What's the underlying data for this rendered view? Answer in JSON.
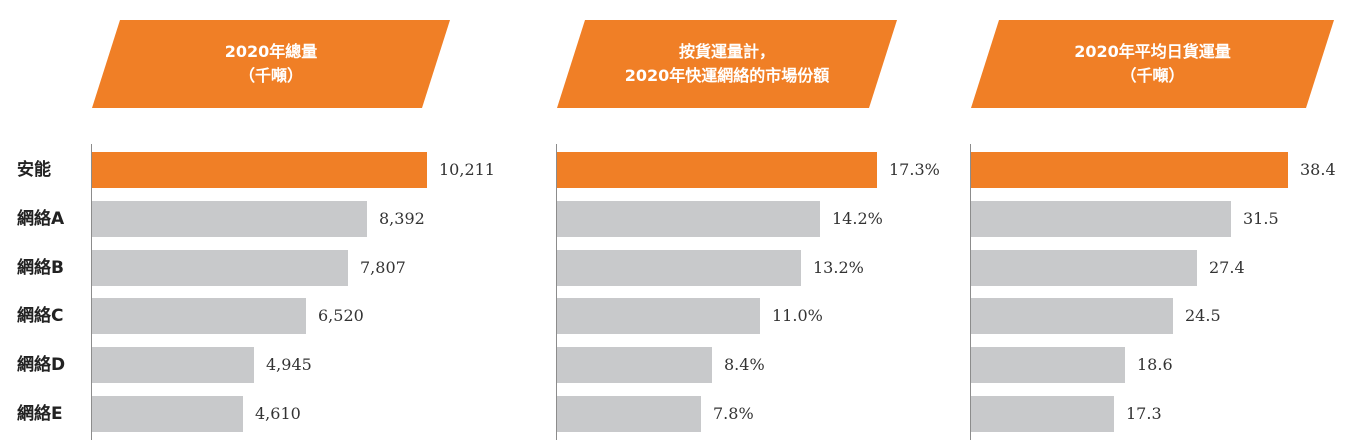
{
  "colors": {
    "highlight": "#F07F26",
    "bar": "#C8C9CB",
    "banner": "#F07F26"
  },
  "categories": [
    "安能",
    "網絡A",
    "網絡B",
    "網絡C",
    "網絡D",
    "網絡E"
  ],
  "chart_data": [
    {
      "type": "bar",
      "title_lines": [
        "2020年總量",
        "（千噸）"
      ],
      "categories": [
        "安能",
        "網絡A",
        "網絡B",
        "網絡C",
        "網絡D",
        "網絡E"
      ],
      "values": [
        10211,
        8392,
        7807,
        6520,
        4945,
        4610
      ],
      "value_labels": [
        "10,211",
        "8,392",
        "7,807",
        "6,520",
        "4,945",
        "4,610"
      ],
      "orientation": "horizontal"
    },
    {
      "type": "bar",
      "title_lines": [
        "按貨運量計，",
        "2020年快運網絡的市場份額"
      ],
      "categories": [
        "安能",
        "網絡A",
        "網絡B",
        "網絡C",
        "網絡D",
        "網絡E"
      ],
      "values": [
        17.3,
        14.2,
        13.2,
        11.0,
        8.4,
        7.8
      ],
      "value_labels": [
        "17.3%",
        "14.2%",
        "13.2%",
        "11.0%",
        "8.4%",
        "7.8%"
      ],
      "orientation": "horizontal"
    },
    {
      "type": "bar",
      "title_lines": [
        "2020年平均日貨運量",
        "（千噸）"
      ],
      "categories": [
        "安能",
        "網絡A",
        "網絡B",
        "網絡C",
        "網絡D",
        "網絡E"
      ],
      "values": [
        38.4,
        31.5,
        27.4,
        24.5,
        18.6,
        17.3
      ],
      "value_labels": [
        "38.4",
        "31.5",
        "27.4",
        "24.5",
        "18.6",
        "17.3"
      ],
      "orientation": "horizontal"
    }
  ]
}
